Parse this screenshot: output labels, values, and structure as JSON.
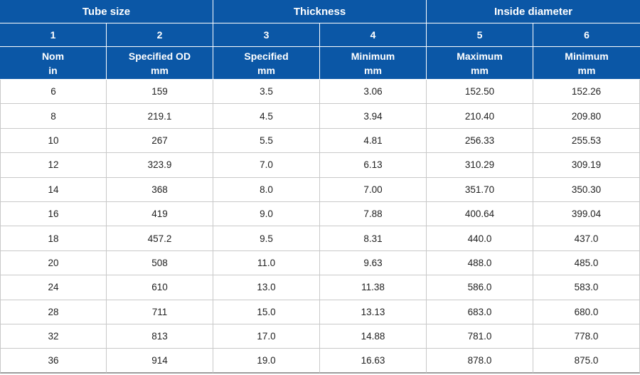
{
  "colors": {
    "header_bg": "#0b57a6",
    "header_text": "#ffffff",
    "body_text": "#222222",
    "grid": "#c9c9c9",
    "outer_border": "#9e9e9e"
  },
  "chart_data": {
    "type": "table",
    "title": "",
    "group_headers": [
      {
        "label": "Tube size",
        "span": 2
      },
      {
        "label": "Thickness",
        "span": 2
      },
      {
        "label": "Inside diameter",
        "span": 2
      }
    ],
    "column_numbers": [
      "1",
      "2",
      "3",
      "4",
      "5",
      "6"
    ],
    "sub_headers": [
      {
        "name": "Nom",
        "unit": "in"
      },
      {
        "name": "Specified OD",
        "unit": "mm"
      },
      {
        "name": "Specified",
        "unit": "mm"
      },
      {
        "name": "Minimum",
        "unit": "mm"
      },
      {
        "name": "Maximum",
        "unit": "mm"
      },
      {
        "name": "Minimum",
        "unit": "mm"
      }
    ],
    "rows": [
      [
        "6",
        "159",
        "3.5",
        "3.06",
        "152.50",
        "152.26"
      ],
      [
        "8",
        "219.1",
        "4.5",
        "3.94",
        "210.40",
        "209.80"
      ],
      [
        "10",
        "267",
        "5.5",
        "4.81",
        "256.33",
        "255.53"
      ],
      [
        "12",
        "323.9",
        "7.0",
        "6.13",
        "310.29",
        "309.19"
      ],
      [
        "14",
        "368",
        "8.0",
        "7.00",
        "351.70",
        "350.30"
      ],
      [
        "16",
        "419",
        "9.0",
        "7.88",
        "400.64",
        "399.04"
      ],
      [
        "18",
        "457.2",
        "9.5",
        "8.31",
        "440.0",
        "437.0"
      ],
      [
        "20",
        "508",
        "11.0",
        "9.63",
        "488.0",
        "485.0"
      ],
      [
        "24",
        "610",
        "13.0",
        "11.38",
        "586.0",
        "583.0"
      ],
      [
        "28",
        "711",
        "15.0",
        "13.13",
        "683.0",
        "680.0"
      ],
      [
        "32",
        "813",
        "17.0",
        "14.88",
        "781.0",
        "778.0"
      ],
      [
        "36",
        "914",
        "19.0",
        "16.63",
        "878.0",
        "875.0"
      ]
    ]
  }
}
